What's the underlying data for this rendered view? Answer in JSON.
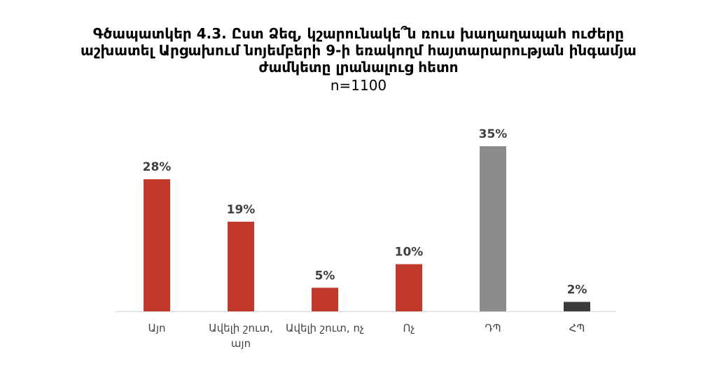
{
  "chart_data": {
    "type": "bar",
    "title_lines": [
      "Գծապատկեր 4.3. Ըստ Ձեզ, կշարունակե՞ն ռուս խաղաղապահ ուժերը",
      "աշխատել Արցախում նոյեմբերի 9-ի եռակողմ հայտարարության ինգամյա",
      "ժամկետը լրանալուց հետո"
    ],
    "subtitle": "n=1100",
    "categories": [
      "Այո",
      "Ավելի շուտ,\nայո",
      "Ավելի շուտ, ոչ",
      "Ոչ",
      "ԴՊ",
      "ՀՊ"
    ],
    "values": [
      28,
      19,
      5,
      10,
      35,
      2
    ],
    "value_labels": [
      "28%",
      "19%",
      "5%",
      "10%",
      "35%",
      "2%"
    ],
    "colors": [
      "#c0392b",
      "#c0392b",
      "#c0392b",
      "#c0392b",
      "#8c8c8c",
      "#3a3a3a"
    ],
    "ylim": [
      0,
      40
    ],
    "grid": false,
    "legend": "none"
  }
}
